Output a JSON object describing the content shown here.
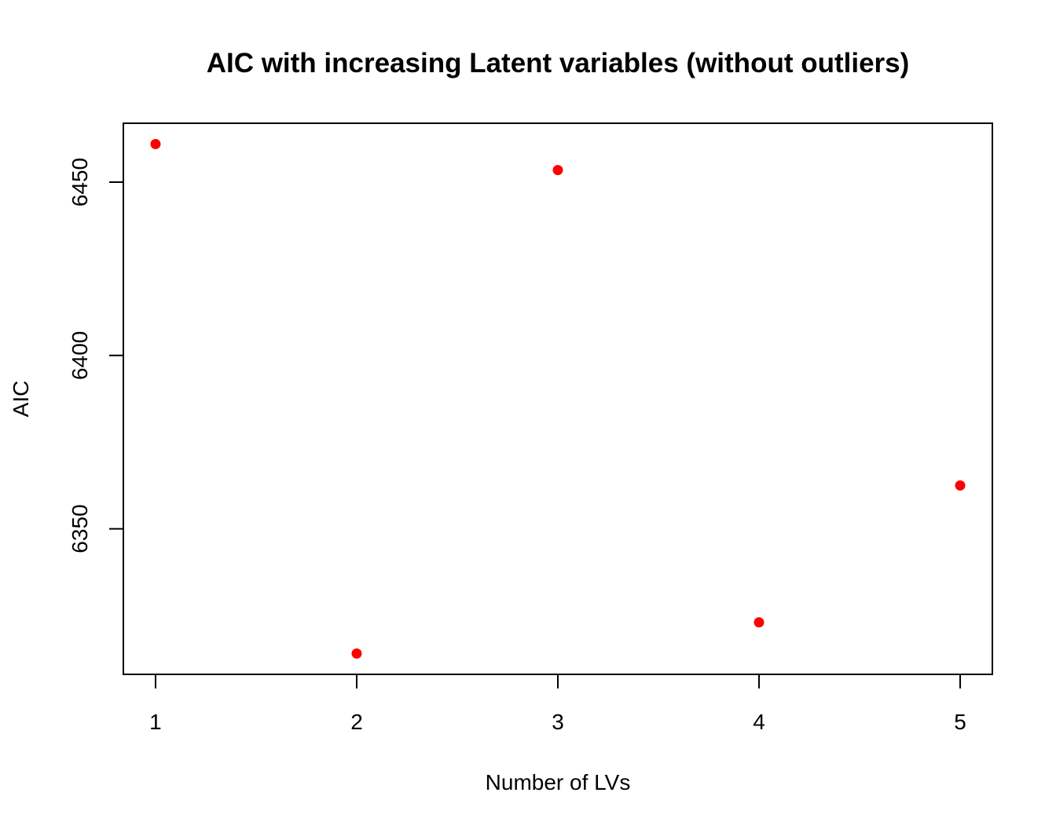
{
  "chart_data": {
    "type": "scatter",
    "title": "AIC with increasing Latent variables (without outliers)",
    "xlabel": "Number of LVs",
    "ylabel": "AIC",
    "x": [
      1,
      2,
      3,
      4,
      5
    ],
    "y": [
      6461,
      6314,
      6453.5,
      6323,
      6362.5
    ],
    "xlim": [
      0.84,
      5.16
    ],
    "ylim": [
      6308,
      6467
    ],
    "xticks": [
      "1",
      "2",
      "3",
      "4",
      "5"
    ],
    "yticks": [
      "6350",
      "6400",
      "6450"
    ],
    "point_color": "#ff0000",
    "grid": false,
    "legend": "none"
  }
}
